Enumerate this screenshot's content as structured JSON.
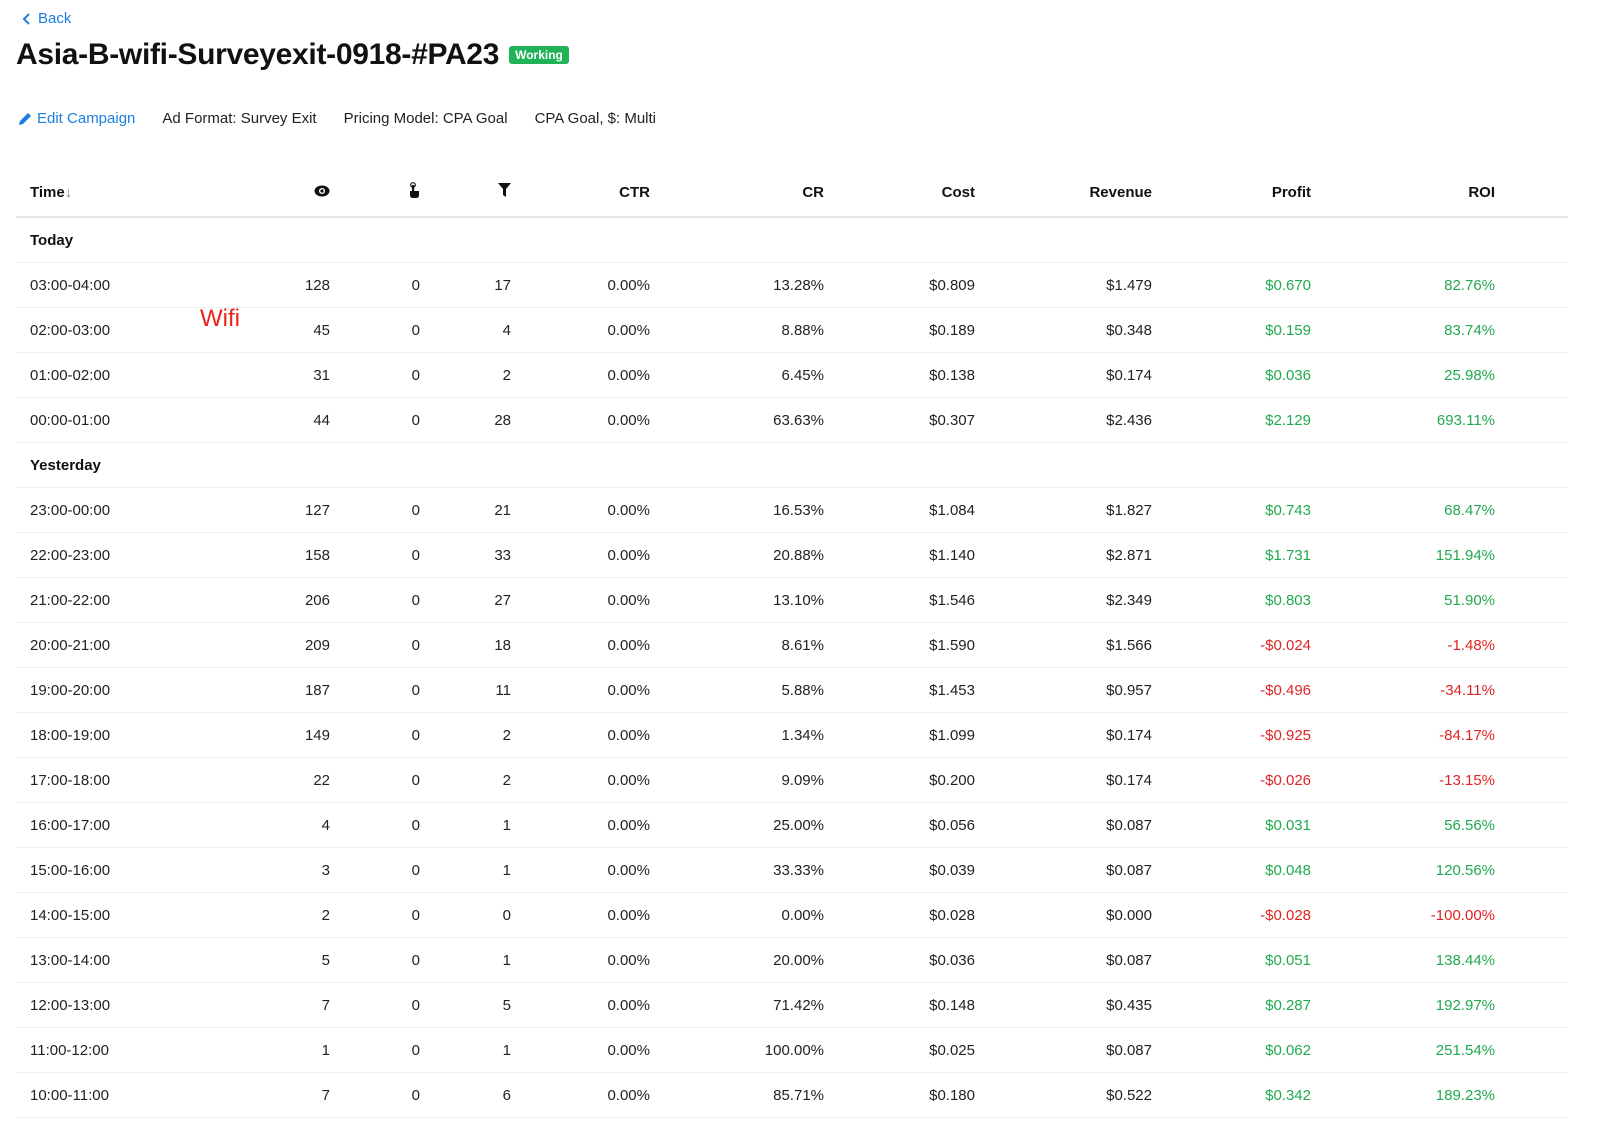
{
  "nav": {
    "back_label": "Back",
    "back_icon": "chevron-left-icon"
  },
  "header": {
    "title": "Asia-B-wifi-Surveyexit-0918-#PA23",
    "status": "Working",
    "status_color": "#1fb257"
  },
  "meta": {
    "edit_label": "Edit Campaign",
    "edit_icon": "pencil-icon",
    "ad_format": "Ad Format: Survey Exit",
    "pricing_model": "Pricing Model: CPA Goal",
    "cpa_goal": "CPA Goal, $: Multi"
  },
  "annotation": "Wifi",
  "colors": {
    "positive": "#22a94f",
    "negative": "#e02424",
    "link": "#1a7fe0"
  },
  "table": {
    "columns": [
      "Time",
      "eye-icon",
      "pointer-icon",
      "funnel-icon",
      "CTR",
      "CR",
      "Cost",
      "Revenue",
      "Profit",
      "ROI"
    ],
    "sort": {
      "column": "Time",
      "direction": "desc"
    },
    "groups": [
      {
        "label": "Today",
        "rows": [
          [
            "03:00-04:00",
            "128",
            "0",
            "17",
            "0.00%",
            "13.28%",
            "$0.809",
            "$1.479",
            "$0.670",
            "82.76%"
          ],
          [
            "02:00-03:00",
            "45",
            "0",
            "4",
            "0.00%",
            "8.88%",
            "$0.189",
            "$0.348",
            "$0.159",
            "83.74%"
          ],
          [
            "01:00-02:00",
            "31",
            "0",
            "2",
            "0.00%",
            "6.45%",
            "$0.138",
            "$0.174",
            "$0.036",
            "25.98%"
          ],
          [
            "00:00-01:00",
            "44",
            "0",
            "28",
            "0.00%",
            "63.63%",
            "$0.307",
            "$2.436",
            "$2.129",
            "693.11%"
          ]
        ]
      },
      {
        "label": "Yesterday",
        "rows": [
          [
            "23:00-00:00",
            "127",
            "0",
            "21",
            "0.00%",
            "16.53%",
            "$1.084",
            "$1.827",
            "$0.743",
            "68.47%"
          ],
          [
            "22:00-23:00",
            "158",
            "0",
            "33",
            "0.00%",
            "20.88%",
            "$1.140",
            "$2.871",
            "$1.731",
            "151.94%"
          ],
          [
            "21:00-22:00",
            "206",
            "0",
            "27",
            "0.00%",
            "13.10%",
            "$1.546",
            "$2.349",
            "$0.803",
            "51.90%"
          ],
          [
            "20:00-21:00",
            "209",
            "0",
            "18",
            "0.00%",
            "8.61%",
            "$1.590",
            "$1.566",
            "-$0.024",
            "-1.48%"
          ],
          [
            "19:00-20:00",
            "187",
            "0",
            "11",
            "0.00%",
            "5.88%",
            "$1.453",
            "$0.957",
            "-$0.496",
            "-34.11%"
          ],
          [
            "18:00-19:00",
            "149",
            "0",
            "2",
            "0.00%",
            "1.34%",
            "$1.099",
            "$0.174",
            "-$0.925",
            "-84.17%"
          ],
          [
            "17:00-18:00",
            "22",
            "0",
            "2",
            "0.00%",
            "9.09%",
            "$0.200",
            "$0.174",
            "-$0.026",
            "-13.15%"
          ],
          [
            "16:00-17:00",
            "4",
            "0",
            "1",
            "0.00%",
            "25.00%",
            "$0.056",
            "$0.087",
            "$0.031",
            "56.56%"
          ],
          [
            "15:00-16:00",
            "3",
            "0",
            "1",
            "0.00%",
            "33.33%",
            "$0.039",
            "$0.087",
            "$0.048",
            "120.56%"
          ],
          [
            "14:00-15:00",
            "2",
            "0",
            "0",
            "0.00%",
            "0.00%",
            "$0.028",
            "$0.000",
            "-$0.028",
            "-100.00%"
          ],
          [
            "13:00-14:00",
            "5",
            "0",
            "1",
            "0.00%",
            "20.00%",
            "$0.036",
            "$0.087",
            "$0.051",
            "138.44%"
          ],
          [
            "12:00-13:00",
            "7",
            "0",
            "5",
            "0.00%",
            "71.42%",
            "$0.148",
            "$0.435",
            "$0.287",
            "192.97%"
          ],
          [
            "11:00-12:00",
            "1",
            "0",
            "1",
            "0.00%",
            "100.00%",
            "$0.025",
            "$0.087",
            "$0.062",
            "251.54%"
          ],
          [
            "10:00-11:00",
            "7",
            "0",
            "6",
            "0.00%",
            "85.71%",
            "$0.180",
            "$0.522",
            "$0.342",
            "189.23%"
          ]
        ]
      }
    ]
  }
}
